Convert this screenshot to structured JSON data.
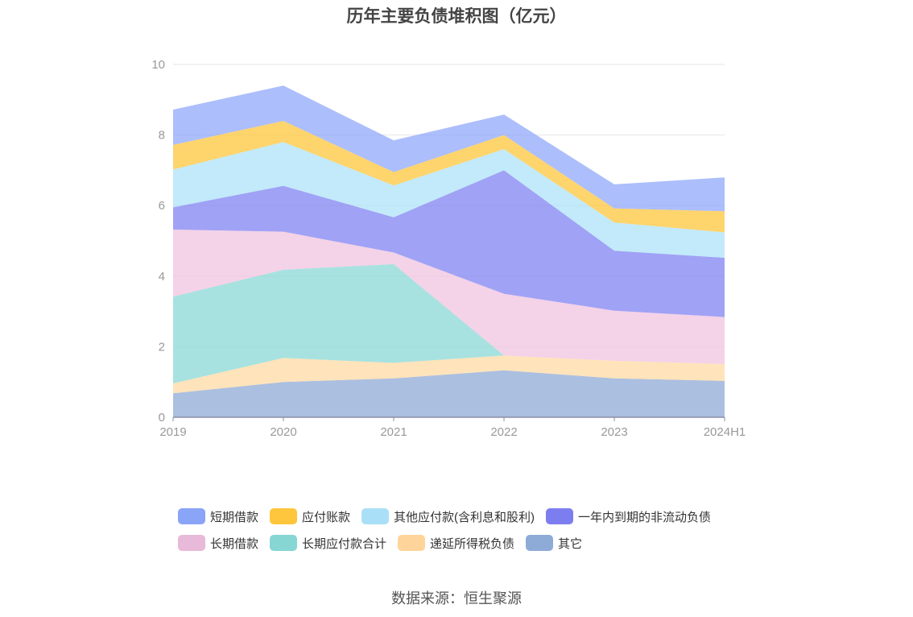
{
  "chart_data": {
    "type": "area",
    "stacked": true,
    "title": "历年主要负债堆积图（亿元）",
    "categories": [
      "2019",
      "2020",
      "2021",
      "2022",
      "2023",
      "2024H1"
    ],
    "ylim": [
      0,
      10
    ],
    "yticks": [
      "0",
      "2",
      "4",
      "6",
      "8",
      "10"
    ],
    "grid": true,
    "legend_position": "bottom",
    "series": [
      {
        "name": "其它",
        "color": "#8fa9d6",
        "values": [
          0.68,
          1.0,
          1.1,
          1.33,
          1.1,
          1.03
        ]
      },
      {
        "name": "递延所得税负债",
        "color": "#ffd9a3",
        "values": [
          0.28,
          0.68,
          0.44,
          0.42,
          0.5,
          0.48
        ]
      },
      {
        "name": "长期应付款合计",
        "color": "#8ad8d6",
        "values": [
          2.46,
          2.5,
          2.8,
          0.0,
          0.0,
          0.0
        ]
      },
      {
        "name": "长期借款",
        "color": "#f0c3e0",
        "values": [
          1.9,
          1.08,
          0.33,
          1.75,
          1.42,
          1.33
        ]
      },
      {
        "name": "一年内到期的非流动负债",
        "color": "#8083f2",
        "values": [
          0.63,
          1.3,
          1.0,
          3.5,
          1.7,
          1.68
        ]
      },
      {
        "name": "其他应付款(含利息和股利)",
        "color": "#aee3f8",
        "values": [
          1.07,
          1.24,
          0.9,
          0.6,
          0.8,
          0.72
        ]
      },
      {
        "name": "应付账款",
        "color": "#fec63c",
        "values": [
          0.7,
          0.6,
          0.38,
          0.4,
          0.4,
          0.6
        ]
      },
      {
        "name": "短期借款",
        "color": "#90a8f9",
        "values": [
          1.0,
          1.0,
          0.9,
          0.58,
          0.68,
          0.96
        ]
      }
    ]
  },
  "legend_order": [
    {
      "name": "短期借款",
      "color": "#8aa4f8"
    },
    {
      "name": "应付账款",
      "color": "#fec63c"
    },
    {
      "name": "其他应付款(含利息和股利)",
      "color": "#a9e0f7"
    },
    {
      "name": "一年内到期的非流动负债",
      "color": "#7c7ef0"
    },
    {
      "name": "长期借款",
      "color": "#e8b9d8"
    },
    {
      "name": "长期应付款合计",
      "color": "#86d6d4"
    },
    {
      "name": "递延所得税负债",
      "color": "#ffd49a"
    },
    {
      "name": "其它",
      "color": "#8eabd8"
    }
  ],
  "source": "数据来源：恒生聚源"
}
